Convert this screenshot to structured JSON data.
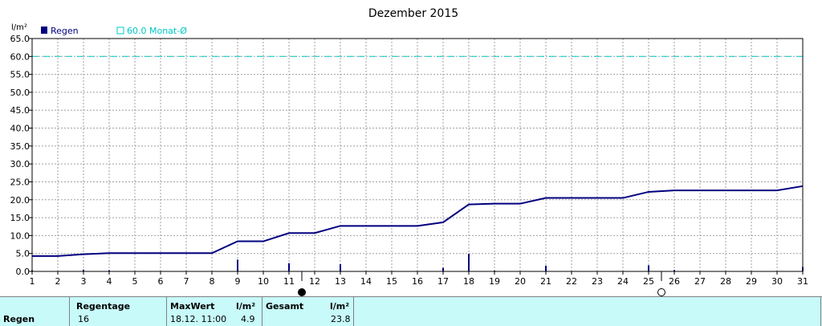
{
  "chart_data": {
    "type": "line",
    "title": "Dezember 2015",
    "ylabel": "l/m²",
    "ylim": [
      0,
      65
    ],
    "yticks": [
      "0.0",
      "5.0",
      "10.0",
      "15.0",
      "20.0",
      "25.0",
      "30.0",
      "35.0",
      "40.0",
      "45.0",
      "50.0",
      "55.0",
      "60.0",
      "65.0"
    ],
    "xticks": [
      "1",
      "2",
      "3",
      "4",
      "5",
      "6",
      "7",
      "8",
      "9",
      "10",
      "11",
      "12",
      "13",
      "14",
      "15",
      "16",
      "17",
      "18",
      "19",
      "20",
      "21",
      "22",
      "23",
      "24",
      "25",
      "26",
      "27",
      "28",
      "29",
      "30",
      "31"
    ],
    "xlim": [
      1,
      31
    ],
    "grid": true,
    "legend": [
      {
        "label": "Regen",
        "color": "#000080"
      },
      {
        "label": "60.0 Monat-Ø",
        "color": "#00c8c8"
      }
    ],
    "reference_line": {
      "value": 60.0,
      "color": "#00c8c8",
      "style": "dashed"
    },
    "series": [
      {
        "name": "Regen",
        "color": "#000080",
        "type": "line",
        "x": [
          1,
          2,
          3,
          4,
          5,
          6,
          7,
          8,
          9,
          10,
          11,
          12,
          13,
          14,
          15,
          16,
          17,
          18,
          19,
          20,
          21,
          22,
          23,
          24,
          25,
          26,
          27,
          28,
          29,
          30,
          31
        ],
        "values": [
          4.3,
          4.3,
          4.8,
          5.1,
          5.1,
          5.1,
          5.1,
          5.1,
          8.4,
          8.4,
          10.7,
          10.7,
          12.7,
          12.7,
          12.7,
          12.7,
          13.7,
          18.7,
          18.9,
          18.9,
          20.5,
          20.5,
          20.5,
          20.5,
          22.2,
          22.6,
          22.6,
          22.6,
          22.6,
          22.6,
          23.8
        ]
      },
      {
        "name": "Regen",
        "color": "#000080",
        "type": "bar",
        "x": [
          1,
          3,
          4,
          9,
          11,
          13,
          17,
          18,
          19,
          21,
          25,
          26,
          31
        ],
        "values": [
          0.3,
          0.5,
          0.3,
          3.3,
          2.3,
          2.0,
          1.0,
          4.9,
          0.2,
          1.6,
          1.7,
          0.4,
          1.2
        ]
      }
    ],
    "moon_phases": [
      {
        "x": 11.5,
        "phase": "new"
      },
      {
        "x": 25.5,
        "phase": "full"
      }
    ]
  },
  "stats": {
    "row_label": "Regen",
    "regentage_label": "Regentage",
    "regentage_value": "16",
    "maxwert_label": "MaxWert",
    "maxwert_date": "18.12.  11:00",
    "maxwert_unit": "l/m²",
    "maxwert_value": "4.9",
    "gesamt_label": "Gesamt",
    "gesamt_unit": "l/m²",
    "gesamt_value": "23.8"
  }
}
